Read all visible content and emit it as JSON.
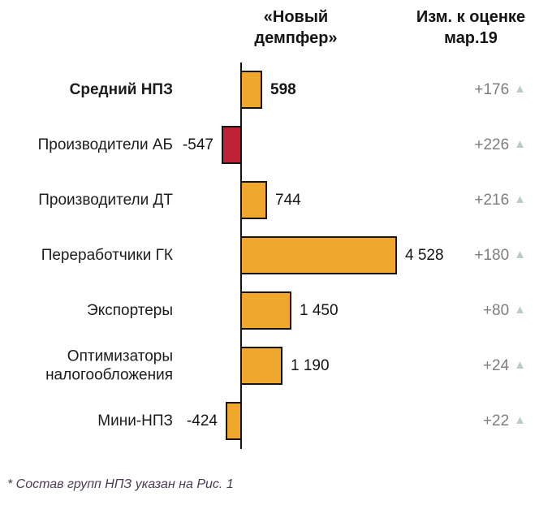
{
  "chart_data": {
    "type": "bar",
    "orientation": "horizontal",
    "title": "«Новый демпфер»",
    "categories": [
      "Средний НПЗ",
      "Производители АБ",
      "Производители ДТ",
      "Переработчики ГК",
      "Экспортеры",
      "Оптимизаторы\nналогообложения",
      "Мини-НПЗ"
    ],
    "values": [
      598,
      -547,
      744,
      4528,
      1450,
      1190,
      -424
    ],
    "value_labels": [
      "598",
      "-547",
      "744",
      "4 528",
      "1 450",
      "1 190",
      "-424"
    ],
    "bar_colors": [
      "#EFA72E",
      "#BF2136",
      "#EFA72E",
      "#EFA72E",
      "#EFA72E",
      "#EFA72E",
      "#EFA72E"
    ],
    "baseline": 0,
    "deltas": {
      "title": "Изм. к оценке\nмар.19",
      "values": [
        176,
        226,
        216,
        180,
        80,
        24,
        22
      ],
      "labels": [
        "+176",
        "+226",
        "+216",
        "+180",
        "+80",
        "+24",
        "+22"
      ],
      "direction": "up"
    }
  },
  "header": {
    "bars_title": "«Новый\nдемпфер»",
    "delta_title": "Изм. к оценке\nмар.19"
  },
  "icons": {
    "triangle_up": "▲"
  },
  "footnote": "* Состав групп НПЗ указан на Рис. 1",
  "colors": {
    "bar_orange": "#EFA72E",
    "bar_red": "#BF2136",
    "bar_border": "#141414",
    "delta_text": "#7E7E7E",
    "triangle": "#B8CEC2",
    "footnote_text": "#4E3A54"
  }
}
